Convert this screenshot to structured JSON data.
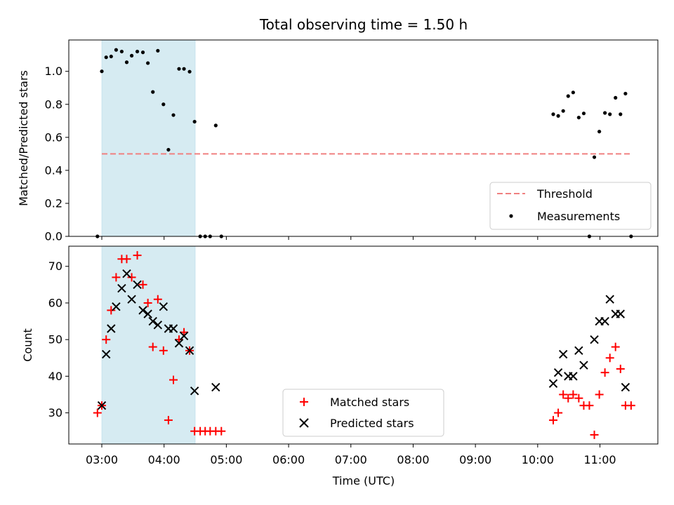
{
  "chart_data": {
    "title": "Total observing time = 1.50 h",
    "xlabel": "Time (UTC)",
    "x_ticks": [
      "03:00",
      "04:00",
      "05:00",
      "06:00",
      "07:00",
      "08:00",
      "09:00",
      "10:00",
      "11:00"
    ],
    "x_range_hours": [
      2.47,
      11.93
    ],
    "highlight_span_hours": [
      3.0,
      4.5
    ],
    "highlight_color": "#add8e6",
    "panels": [
      {
        "type": "scatter",
        "ylabel": "Matched/Predicted stars",
        "ylim": [
          0.0,
          1.19
        ],
        "yticks": [
          "0.0",
          "0.2",
          "0.4",
          "0.6",
          "0.8",
          "1.0"
        ],
        "yticks_values": [
          0.0,
          0.2,
          0.4,
          0.6,
          0.8,
          1.0
        ],
        "threshold": {
          "name": "Threshold",
          "value": 0.5,
          "x_range": [
            3.0,
            11.5
          ],
          "color": "#f08080"
        },
        "legend_position": "lower-right",
        "series": [
          {
            "name": "Measurements",
            "color": "#000000",
            "marker": "dot",
            "points": [
              [
                2.93,
                0.0
              ],
              [
                3.0,
                1.0
              ],
              [
                3.07,
                1.085
              ],
              [
                3.15,
                1.09
              ],
              [
                3.23,
                1.13
              ],
              [
                3.32,
                1.12
              ],
              [
                3.4,
                1.055
              ],
              [
                3.48,
                1.095
              ],
              [
                3.57,
                1.12
              ],
              [
                3.66,
                1.115
              ],
              [
                3.74,
                1.05
              ],
              [
                3.82,
                0.875
              ],
              [
                3.9,
                1.125
              ],
              [
                3.99,
                0.8
              ],
              [
                4.07,
                0.525
              ],
              [
                4.15,
                0.735
              ],
              [
                4.24,
                1.015
              ],
              [
                4.32,
                1.015
              ],
              [
                4.41,
                0.998
              ],
              [
                4.49,
                0.695
              ],
              [
                4.58,
                0.0
              ],
              [
                4.66,
                0.0
              ],
              [
                4.74,
                0.0
              ],
              [
                4.83,
                0.672
              ],
              [
                4.92,
                0.0
              ],
              [
                10.25,
                0.74
              ],
              [
                10.33,
                0.73
              ],
              [
                10.41,
                0.76
              ],
              [
                10.49,
                0.85
              ],
              [
                10.57,
                0.872
              ],
              [
                10.66,
                0.72
              ],
              [
                10.74,
                0.745
              ],
              [
                10.83,
                0.0
              ],
              [
                10.91,
                0.48
              ],
              [
                10.99,
                0.635
              ],
              [
                11.08,
                0.748
              ],
              [
                11.16,
                0.74
              ],
              [
                11.25,
                0.84
              ],
              [
                11.33,
                0.74
              ],
              [
                11.41,
                0.865
              ],
              [
                11.5,
                0.0
              ]
            ]
          }
        ]
      },
      {
        "type": "scatter",
        "ylabel": "Count",
        "ylim": [
          21.5,
          75.5
        ],
        "yticks": [
          "30",
          "40",
          "50",
          "60",
          "70"
        ],
        "yticks_values": [
          30,
          40,
          50,
          60,
          70
        ],
        "legend_position": "lower-center",
        "series": [
          {
            "name": "Matched stars",
            "color": "#ff0000",
            "marker": "plus",
            "points": [
              [
                2.93,
                30
              ],
              [
                3.0,
                32
              ],
              [
                3.07,
                50
              ],
              [
                3.15,
                58
              ],
              [
                3.23,
                67
              ],
              [
                3.32,
                72
              ],
              [
                3.4,
                72
              ],
              [
                3.48,
                67
              ],
              [
                3.57,
                73
              ],
              [
                3.66,
                65
              ],
              [
                3.74,
                60
              ],
              [
                3.82,
                48
              ],
              [
                3.9,
                61
              ],
              [
                3.99,
                47
              ],
              [
                4.07,
                28
              ],
              [
                4.15,
                39
              ],
              [
                4.24,
                50
              ],
              [
                4.32,
                52
              ],
              [
                4.41,
                47
              ],
              [
                4.49,
                25
              ],
              [
                4.58,
                25
              ],
              [
                4.66,
                25
              ],
              [
                4.74,
                25
              ],
              [
                4.83,
                25
              ],
              [
                4.92,
                25
              ],
              [
                10.25,
                28
              ],
              [
                10.33,
                30
              ],
              [
                10.41,
                35
              ],
              [
                10.49,
                34
              ],
              [
                10.57,
                35
              ],
              [
                10.66,
                34
              ],
              [
                10.74,
                32
              ],
              [
                10.83,
                32
              ],
              [
                10.91,
                24
              ],
              [
                10.99,
                35
              ],
              [
                11.08,
                41
              ],
              [
                11.16,
                45
              ],
              [
                11.25,
                48
              ],
              [
                11.33,
                42
              ],
              [
                11.41,
                32
              ],
              [
                11.5,
                32
              ]
            ]
          },
          {
            "name": "Predicted stars",
            "color": "#000000",
            "marker": "x",
            "points": [
              [
                3.0,
                32
              ],
              [
                3.07,
                46
              ],
              [
                3.15,
                53
              ],
              [
                3.23,
                59
              ],
              [
                3.32,
                64
              ],
              [
                3.4,
                68
              ],
              [
                3.48,
                61
              ],
              [
                3.57,
                65
              ],
              [
                3.66,
                58
              ],
              [
                3.74,
                57
              ],
              [
                3.82,
                55
              ],
              [
                3.9,
                54
              ],
              [
                3.99,
                59
              ],
              [
                4.07,
                53
              ],
              [
                4.15,
                53
              ],
              [
                4.24,
                49
              ],
              [
                4.32,
                51
              ],
              [
                4.41,
                47
              ],
              [
                4.49,
                36
              ],
              [
                4.83,
                37
              ],
              [
                10.25,
                38
              ],
              [
                10.33,
                41
              ],
              [
                10.41,
                46
              ],
              [
                10.49,
                40
              ],
              [
                10.57,
                40
              ],
              [
                10.66,
                47
              ],
              [
                10.74,
                43
              ],
              [
                10.91,
                50
              ],
              [
                10.99,
                55
              ],
              [
                11.08,
                55
              ],
              [
                11.16,
                61
              ],
              [
                11.25,
                57
              ],
              [
                11.33,
                57
              ],
              [
                11.41,
                37
              ]
            ]
          }
        ]
      }
    ]
  }
}
